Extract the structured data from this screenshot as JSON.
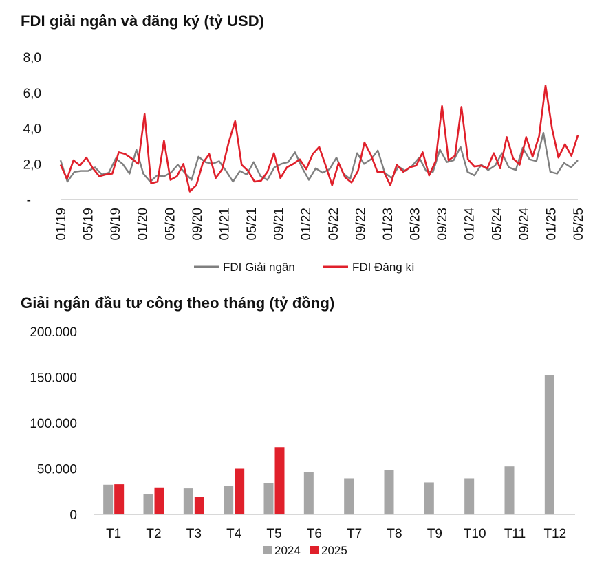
{
  "chart_data": [
    {
      "type": "line",
      "title": "FDI giải ngân và đăng ký (tỷ USD)",
      "ylim": [
        0,
        8
      ],
      "y_ticks": [
        "-",
        "2,0",
        "4,0",
        "6,0",
        "8,0"
      ],
      "x_tick_labels": [
        "01/19",
        "05/19",
        "09/19",
        "01/20",
        "05/20",
        "09/20",
        "01/21",
        "05/21",
        "09/21",
        "01/22",
        "05/22",
        "09/22",
        "01/23",
        "05/23",
        "09/23",
        "01/24",
        "05/24",
        "09/24",
        "01/25",
        "05/25"
      ],
      "legend_placement": "bottom",
      "grid": false,
      "series": [
        {
          "name": "FDI Giải ngân",
          "color": "#7f7f7f",
          "values": [
            2.2,
            1.0,
            1.55,
            1.6,
            1.6,
            1.8,
            1.4,
            1.5,
            2.3,
            2.0,
            1.45,
            2.8,
            1.45,
            1.0,
            1.35,
            1.3,
            1.5,
            1.95,
            1.5,
            1.1,
            2.4,
            2.1,
            2.0,
            2.15,
            1.6,
            1.0,
            1.6,
            1.4,
            2.1,
            1.3,
            1.1,
            1.8,
            2.0,
            2.1,
            2.65,
            1.8,
            1.1,
            1.75,
            1.5,
            1.7,
            2.35,
            1.45,
            1.15,
            2.6,
            2.0,
            2.25,
            2.75,
            1.5,
            1.2,
            1.85,
            1.6,
            1.9,
            2.35,
            1.6,
            1.55,
            2.8,
            2.1,
            2.2,
            2.95,
            1.55,
            1.35,
            1.95,
            1.65,
            1.9,
            2.6,
            1.8,
            1.65,
            2.9,
            2.25,
            2.15,
            3.75,
            1.55,
            1.45,
            2.05,
            1.8,
            2.2
          ]
        },
        {
          "name": "FDI Đăng kí",
          "color": "#e0202b",
          "values": [
            1.95,
            1.15,
            2.2,
            1.9,
            2.35,
            1.75,
            1.3,
            1.4,
            1.45,
            2.65,
            2.55,
            2.3,
            2.0,
            4.8,
            0.9,
            1.0,
            3.3,
            1.1,
            1.3,
            2.0,
            0.45,
            0.8,
            2.05,
            2.55,
            1.2,
            1.7,
            3.2,
            4.4,
            1.95,
            1.6,
            1.0,
            1.05,
            1.55,
            2.6,
            1.2,
            1.8,
            2.0,
            2.25,
            1.7,
            2.55,
            2.95,
            1.9,
            0.8,
            2.05,
            1.25,
            0.95,
            1.6,
            3.2,
            2.5,
            1.55,
            1.55,
            0.8,
            1.95,
            1.55,
            1.8,
            1.9,
            2.65,
            1.35,
            2.15,
            5.25,
            2.2,
            2.45,
            5.2,
            2.25,
            1.85,
            1.9,
            1.75,
            2.6,
            1.75,
            3.5,
            2.3,
            1.95,
            3.5,
            2.4,
            3.55,
            6.4,
            4.0,
            2.35,
            3.1,
            2.45,
            3.6
          ]
        }
      ]
    },
    {
      "type": "bar",
      "title": "Giải ngân đầu tư công theo tháng (tỷ đồng)",
      "ylim": [
        0,
        200000
      ],
      "y_ticks": [
        "0",
        "50.000",
        "100.000",
        "150.000",
        "200.000"
      ],
      "categories": [
        "T1",
        "T2",
        "T3",
        "T4",
        "T5",
        "T6",
        "T7",
        "T8",
        "T9",
        "T10",
        "T11",
        "T12"
      ],
      "legend_placement": "bottom",
      "grid": false,
      "series": [
        {
          "name": "2024",
          "color": "#a6a6a6",
          "values": [
            32500,
            22500,
            28500,
            31000,
            34500,
            46500,
            39500,
            48500,
            35000,
            39500,
            52500,
            152000
          ]
        },
        {
          "name": "2025",
          "color": "#e0202b",
          "values": [
            33000,
            29500,
            19000,
            50000,
            73500,
            null,
            null,
            null,
            null,
            null,
            null,
            null
          ]
        }
      ]
    }
  ]
}
